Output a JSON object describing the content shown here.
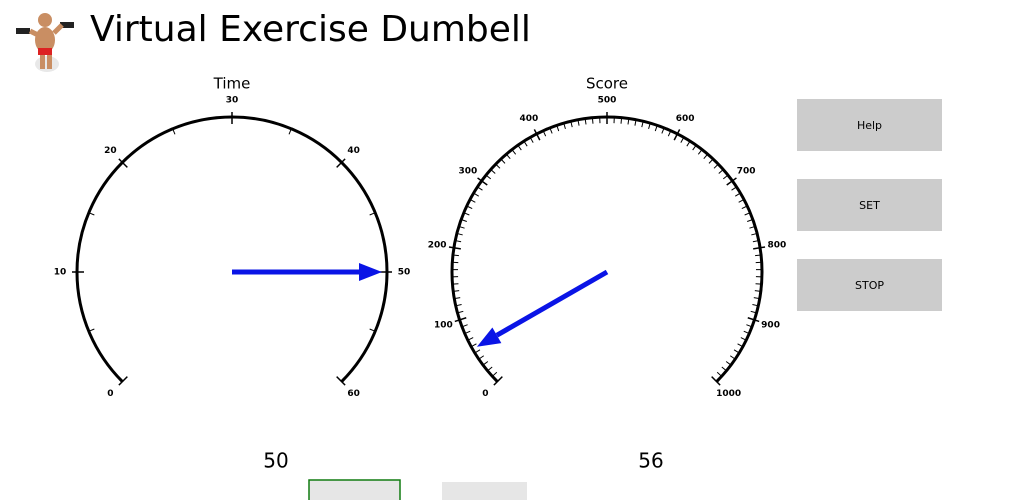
{
  "header": {
    "title": "Virtual Exercise Dumbell"
  },
  "gauges": [
    {
      "label": "Time",
      "min": 0,
      "max": 60,
      "ticks": [
        0,
        10,
        20,
        30,
        40,
        50,
        60
      ],
      "minor_divisions": 2,
      "value": 50
    },
    {
      "label": "Score",
      "min": 0,
      "max": 1000,
      "ticks": [
        0,
        100,
        200,
        300,
        400,
        500,
        600,
        700,
        800,
        900,
        1000
      ],
      "minor_divisions": 10,
      "value": 56
    }
  ],
  "buttons": [
    "Help",
    "SET",
    "STOP"
  ]
}
